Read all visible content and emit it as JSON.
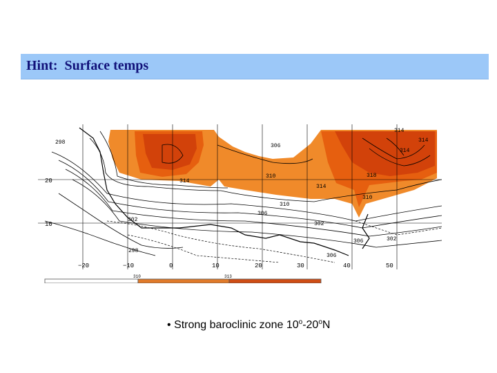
{
  "slide": {
    "title": "Hint:  Surface temps",
    "bullet_marker": "•",
    "bullet_text_1": "Strong baroclinic zone 10",
    "bullet_sup_1": "o",
    "bullet_text_2": "-20",
    "bullet_sup_2": "o",
    "bullet_text_3": "N"
  },
  "map": {
    "lat_labels": [
      "20",
      "10"
    ],
    "lon_labels": [
      "−20",
      "−10",
      "0",
      "10",
      "20",
      "30",
      "40",
      "50"
    ],
    "contour_labels": [
      "298",
      "306",
      "310",
      "314",
      "314",
      "314",
      "314",
      "310",
      "318",
      "314",
      "310",
      "306",
      "302",
      "302",
      "302",
      "306",
      "306",
      "298"
    ],
    "colorbar_labels": [
      "310",
      "313"
    ],
    "colors": {
      "light": "#f08a2a",
      "mid": "#e65f0f",
      "dark": "#d2420a",
      "title_bar": "#9cc8f8",
      "title_text": "#12127a"
    }
  }
}
